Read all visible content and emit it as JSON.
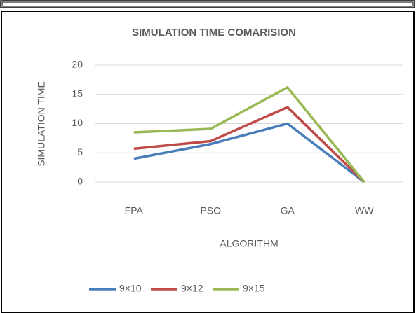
{
  "chart_data": {
    "type": "line",
    "title": "SIMULATION TIME COMARISION",
    "x_label": "ALGORITHM",
    "y_label": "SIMULATION TIME",
    "categories": [
      "FPA",
      "PSO",
      "GA",
      "WW"
    ],
    "series": [
      {
        "name": "9×10",
        "color": "#4a7ebb",
        "values": [
          4,
          6.5,
          10,
          0
        ]
      },
      {
        "name": "9×12",
        "color": "#be4b48",
        "values": [
          5.7,
          7,
          12.8,
          0
        ]
      },
      {
        "name": "9×15",
        "color": "#98b954",
        "values": [
          8.5,
          9.1,
          16.2,
          0
        ]
      }
    ],
    "ylim": [
      0,
      20
    ],
    "yticks": [
      0,
      5,
      10,
      15,
      20
    ],
    "grid": true,
    "legend": "bottom"
  }
}
